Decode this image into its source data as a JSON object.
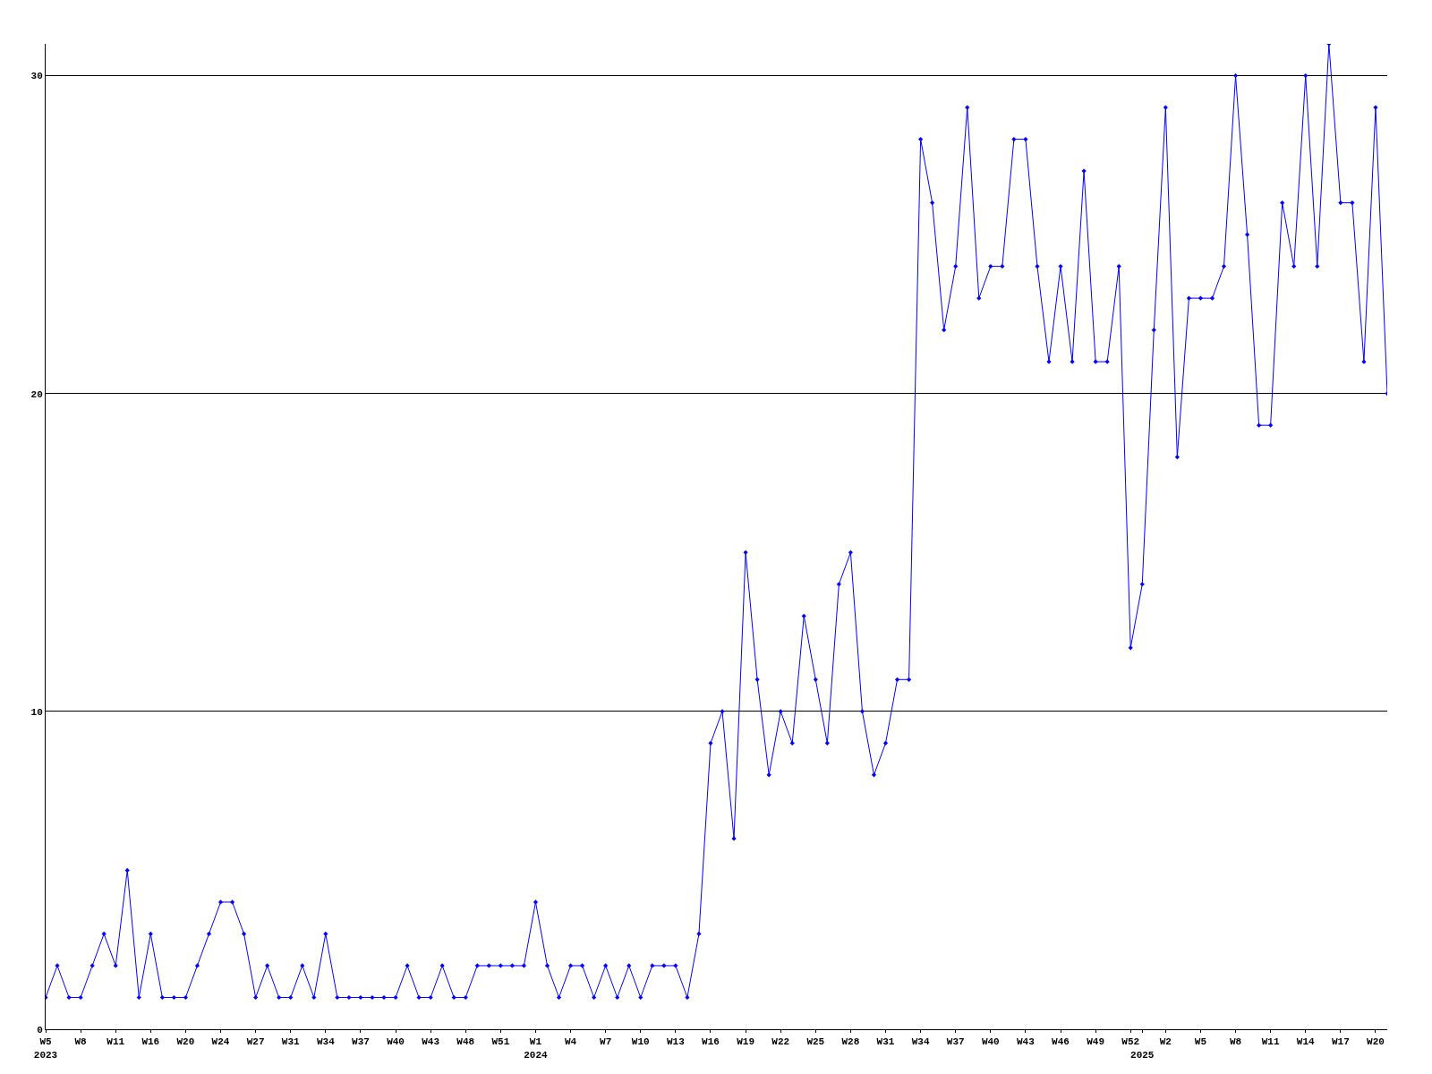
{
  "chart_data": {
    "type": "line",
    "categories": [
      "W5\n2023",
      null,
      null,
      "W8",
      null,
      null,
      "W11",
      null,
      null,
      "W16",
      null,
      null,
      "W20",
      null,
      null,
      "W24",
      null,
      null,
      "W27",
      null,
      null,
      "W31",
      null,
      null,
      "W34",
      null,
      null,
      "W37",
      null,
      null,
      "W40",
      null,
      null,
      "W43",
      null,
      null,
      "W48",
      null,
      null,
      "W51",
      null,
      null,
      "W1\n2024",
      null,
      null,
      "W4",
      null,
      null,
      "W7",
      null,
      null,
      "W10",
      null,
      null,
      "W13",
      null,
      null,
      "W16",
      null,
      null,
      "W19",
      null,
      null,
      "W22",
      null,
      null,
      "W25",
      null,
      null,
      "W28",
      null,
      null,
      "W31",
      null,
      null,
      "W34",
      null,
      null,
      "W37",
      null,
      null,
      "W40",
      null,
      null,
      "W43",
      null,
      null,
      "W46",
      null,
      null,
      "W49",
      null,
      null,
      "W52",
      "\n2025",
      null,
      "W2",
      null,
      null,
      "W5",
      null,
      null,
      "W8",
      null,
      null,
      "W11",
      null,
      null,
      "W14",
      null,
      null,
      "W17",
      null,
      null,
      "W20",
      null
    ],
    "series": [
      {
        "color": "#0000ff",
        "values": [
          1,
          2,
          1,
          1,
          2,
          3,
          2,
          5,
          1,
          3,
          1,
          1,
          1,
          2,
          3,
          4,
          4,
          3,
          1,
          2,
          1,
          1,
          2,
          1,
          3,
          1,
          1,
          1,
          1,
          1,
          1,
          2,
          1,
          1,
          2,
          1,
          1,
          2,
          2,
          2,
          2,
          2,
          4,
          2,
          1,
          2,
          2,
          1,
          2,
          1,
          2,
          1,
          2,
          2,
          2,
          1,
          3,
          9,
          10,
          6,
          15,
          11,
          8,
          10,
          9,
          13,
          11,
          9,
          14,
          15,
          10,
          8,
          9,
          11,
          11,
          28,
          26,
          22,
          24,
          29,
          23,
          24,
          24,
          28,
          28,
          24,
          21,
          24,
          21,
          27,
          21,
          21,
          24,
          12,
          14,
          22,
          29,
          18,
          23,
          23,
          23,
          24,
          30,
          25,
          19,
          19,
          26,
          24,
          30,
          24,
          31,
          26,
          26,
          21,
          29,
          20
        ]
      }
    ],
    "ylim": [
      0,
      31
    ],
    "yticks": [
      0,
      10,
      20,
      30
    ],
    "grid": "y",
    "marker": "diamond",
    "line_style": "solid",
    "legend": false
  }
}
